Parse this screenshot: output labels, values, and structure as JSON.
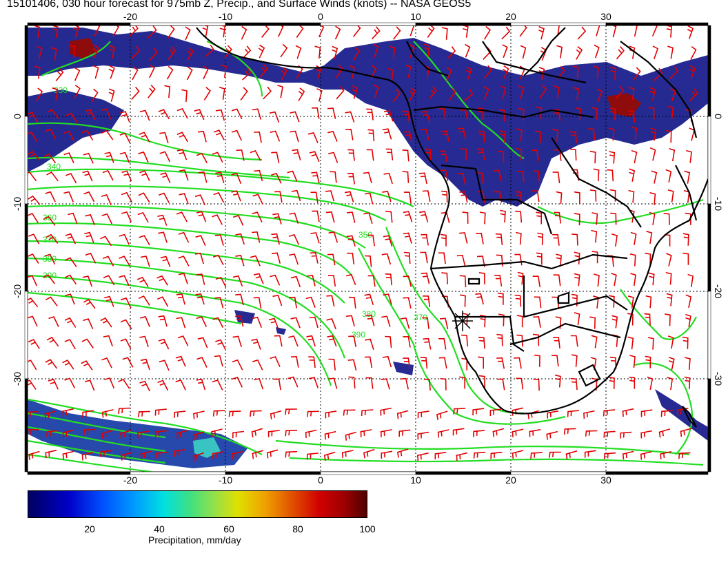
{
  "title": "15101406, 030 hour forecast for 975mb Z, Precip., and Surface Winds (knots) -- NASA GEOS5",
  "map": {
    "lon_ticks": [
      "-20",
      "-10",
      "0",
      "10",
      "20",
      "30"
    ],
    "lat_ticks": [
      "0",
      "-10",
      "-20",
      "-30"
    ],
    "contour_labels": [
      "330",
      "340",
      "360",
      "370",
      "380",
      "390",
      "350",
      "370",
      "380",
      "390"
    ],
    "colors": {
      "contour": "#22dd22",
      "wind_barb": "#e00000",
      "coastline": "#000000",
      "grid": "#000000"
    },
    "marker": "star-marker"
  },
  "colorbar": {
    "ticks": [
      "20",
      "40",
      "60",
      "80",
      "100"
    ],
    "label": "Precipitation, mm/day",
    "range": [
      0,
      100
    ]
  }
}
